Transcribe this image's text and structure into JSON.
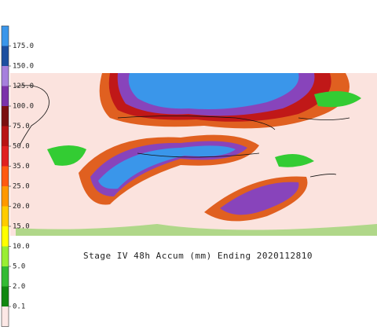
{
  "map": {
    "title": "Stage IV 48h Accum (mm) Ending 2020112810"
  },
  "legend": {
    "labels": [
      "175.0",
      "150.0",
      "125.0",
      "100.0",
      "75.0",
      "50.0",
      "35.0",
      "25.0",
      "20.0",
      "15.0",
      "10.0",
      "5.0",
      "2.0",
      "0.1"
    ]
  }
}
